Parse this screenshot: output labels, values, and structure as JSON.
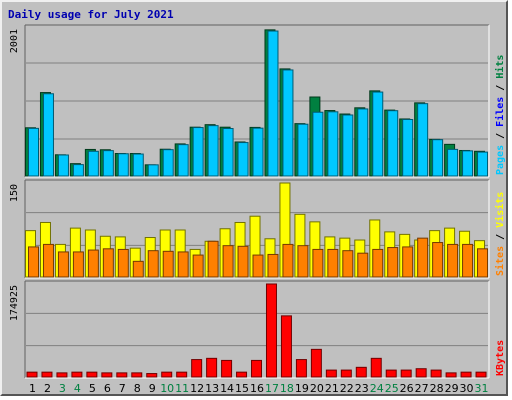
{
  "chart_data": {
    "type": "bar",
    "title": "Daily usage for July 2021",
    "categories": [
      "1",
      "2",
      "3",
      "4",
      "5",
      "6",
      "7",
      "8",
      "9",
      "10",
      "11",
      "12",
      "13",
      "14",
      "15",
      "16",
      "17",
      "18",
      "19",
      "20",
      "21",
      "22",
      "23",
      "24",
      "25",
      "26",
      "27",
      "28",
      "29",
      "30",
      "31"
    ],
    "weekend_days": [
      "3",
      "4",
      "10",
      "11",
      "17",
      "18",
      "24",
      "25",
      "31"
    ],
    "colors": {
      "hits": "#008040",
      "files": "#00c8ff",
      "pages": "#00c8ff",
      "visits": "#ffff00",
      "sites": "#ff8000",
      "kbytes": "#ff0000",
      "weekday_label": "#000000",
      "weekend_label": "#008040",
      "title": "#0000b0"
    },
    "panels": [
      {
        "name": "Hits / Files / Pages",
        "ymax": 2001,
        "ymax_label": "2001",
        "legend": [
          {
            "text": "Pages",
            "color": "#00c8ff"
          },
          {
            "text": " / ",
            "color": "#000000"
          },
          {
            "text": "Files",
            "color": "#0000ff"
          },
          {
            "text": " / ",
            "color": "#000000"
          },
          {
            "text": "Hits",
            "color": "#008040"
          }
        ],
        "series": [
          {
            "name": "Hits",
            "values": [
              652,
              1128,
              287,
              167,
              359,
              355,
              304,
              304,
              151,
              362,
              434,
              660,
              694,
              660,
              460,
              657,
              1976,
              1448,
              708,
              1068,
              885,
              838,
              922,
              1151,
              891,
              771,
              989,
              495,
              428,
              345,
              334
            ]
          },
          {
            "name": "Files",
            "values": [
              644,
              1112,
              284,
              154,
              334,
              343,
              301,
              297,
              151,
              356,
              424,
              655,
              681,
              642,
              452,
              647,
              1960,
              1434,
              700,
              862,
              868,
              825,
              907,
              1135,
              883,
              764,
              978,
              491,
              360,
              340,
              323
            ]
          }
        ]
      },
      {
        "name": "Visits / Sites",
        "ymax": 150,
        "ymax_label": "150",
        "legend": [
          {
            "text": "Sites",
            "color": "#ff8000"
          },
          {
            "text": " / ",
            "color": "#000000"
          },
          {
            "text": "Visits",
            "color": "#ffff00"
          }
        ],
        "series": [
          {
            "name": "Visits",
            "values": [
              74,
              87,
              52,
              78,
              75,
              65,
              64,
              46,
              63,
              75,
              75,
              44,
              57,
              77,
              87,
              97,
              61,
              150,
              100,
              88,
              64,
              62,
              59,
              91,
              72,
              68,
              59,
              74,
              78,
              73,
              58
            ]
          },
          {
            "name": "Sites",
            "values": [
              48,
              52,
              40,
              40,
              43,
              45,
              44,
              25,
              42,
              41,
              40,
              35,
              57,
              50,
              49,
              35,
              36,
              52,
              50,
              44,
              44,
              42,
              38,
              44,
              47,
              48,
              62,
              55,
              52,
              52,
              45
            ]
          }
        ]
      },
      {
        "name": "KBytes",
        "ymax": 174925,
        "ymax_label": "174925",
        "legend": [
          {
            "text": "KBytes",
            "color": "#ff0000"
          }
        ],
        "series": [
          {
            "name": "KBytes",
            "values": [
              9130,
              9130,
              7800,
              9130,
              9130,
              7800,
              7800,
              7800,
              6500,
              9130,
              9130,
              32800,
              35100,
              31200,
              9130,
              31200,
              174925,
              115000,
              32800,
              52000,
              13000,
              13000,
              18200,
              35100,
              13000,
              13000,
              15600,
              13000,
              7800,
              9130,
              9130
            ]
          }
        ]
      }
    ]
  }
}
